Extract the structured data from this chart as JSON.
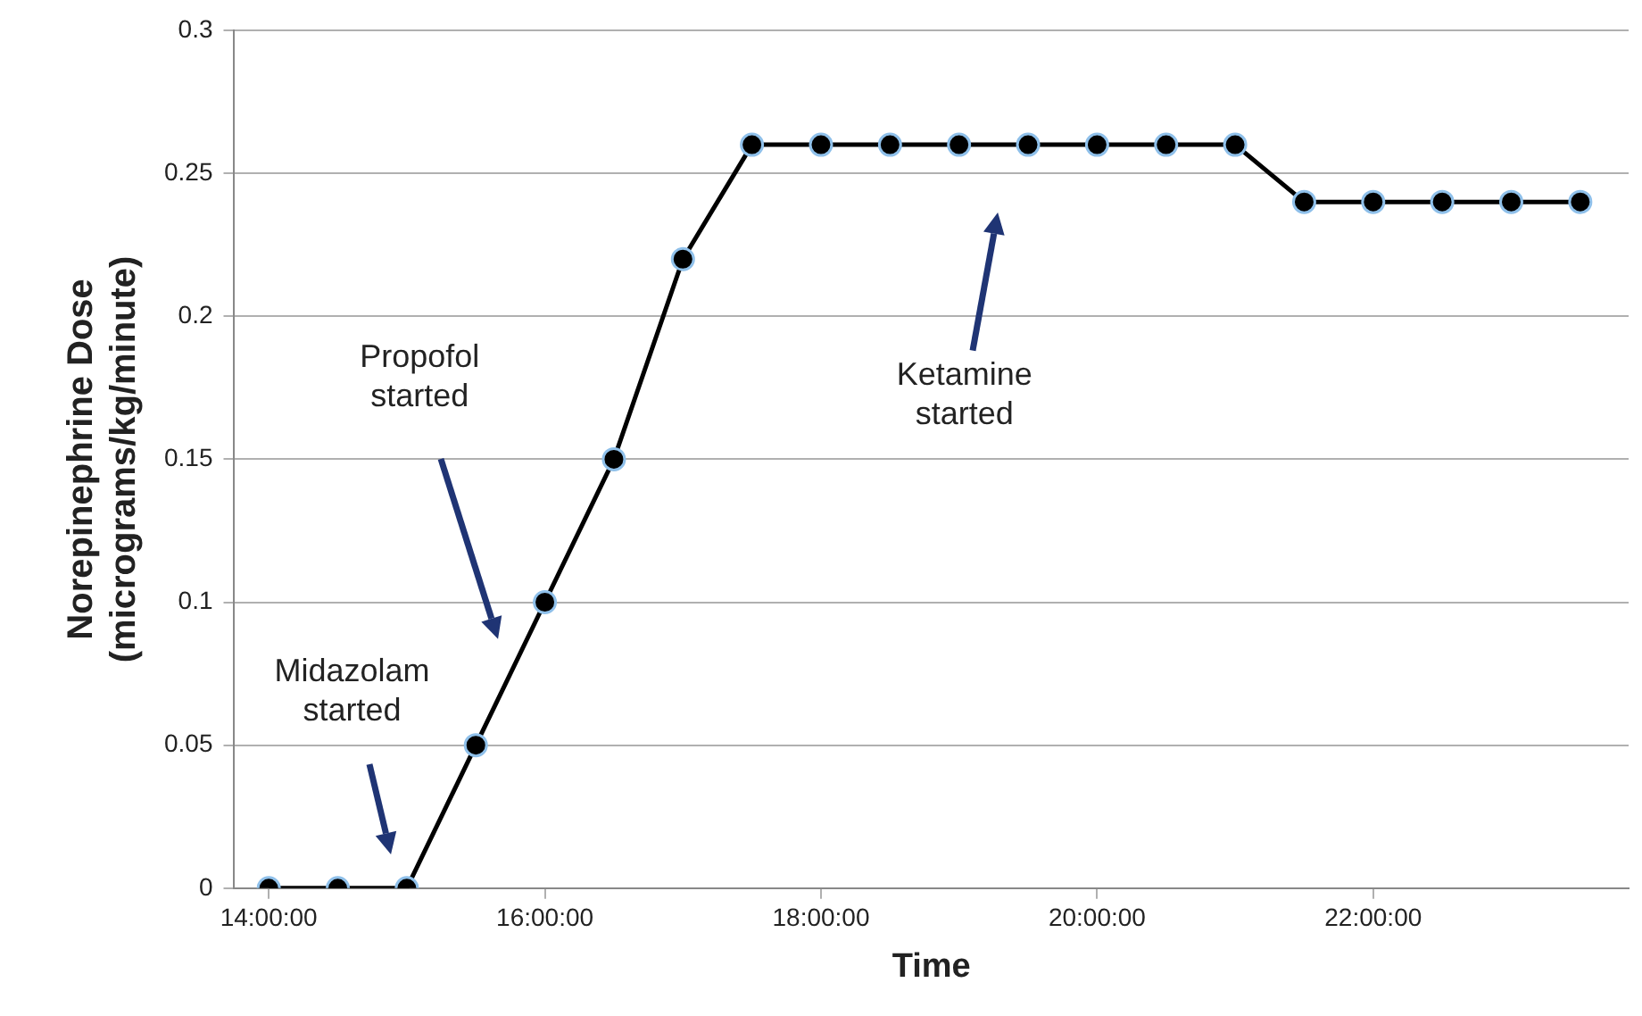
{
  "chart_data": {
    "type": "line",
    "xlabel": "Time",
    "ylabel": "Norepinephrine Dose\n(micrograms/kg/minute)",
    "x": [
      14,
      14.5,
      15,
      15.5,
      16,
      16.5,
      17,
      17.5,
      18,
      18.5,
      19,
      19.5,
      20,
      20.5,
      21,
      21.5,
      22,
      22.5,
      23,
      23.5
    ],
    "series": [
      {
        "color": "#000000",
        "values": [
          0,
          0,
          0,
          0.05,
          0.1,
          0.15,
          0.22,
          0.26,
          0.26,
          0.26,
          0.26,
          0.26,
          0.26,
          0.26,
          0.26,
          0.24,
          0.24,
          0.24,
          0.24,
          0.24
        ]
      }
    ],
    "xlim": [
      13.75,
      23.85
    ],
    "xticks": [
      {
        "value": 14,
        "label": "14:00:00"
      },
      {
        "value": 16,
        "label": "16:00:00"
      },
      {
        "value": 18,
        "label": "18:00:00"
      },
      {
        "value": 20,
        "label": "20:00:00"
      },
      {
        "value": 22,
        "label": "22:00:00"
      }
    ],
    "ylim": [
      0,
      0.3
    ],
    "yticks": [
      0,
      0.05,
      0.1,
      0.15,
      0.2,
      0.25,
      0.3
    ],
    "grid": "y",
    "marker": "circle",
    "line_style": "solid",
    "annotations": [
      "Midazolam\nstarted",
      "Propofol\nstarted",
      "Ketamine\nstarted"
    ]
  }
}
